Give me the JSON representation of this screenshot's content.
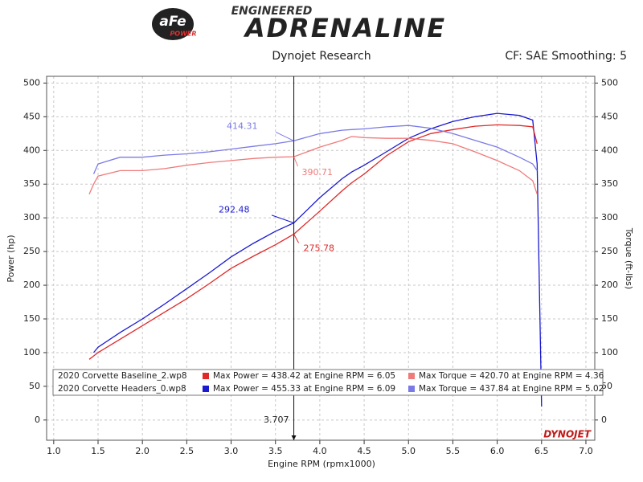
{
  "chart_data": {
    "type": "line",
    "logo": "aFe",
    "logo_sub": "POWER",
    "supertitle": "ENGINEERED",
    "title": "ADRENALINE",
    "subtitle": "Dynojet Research",
    "corner_note": "CF: SAE Smoothing: 5",
    "brand": "DYNOJET",
    "x_label": "Engine RPM (rpmx1000)",
    "y_label": "Power (hp)",
    "y2_label": "Torque (ft-lbs)",
    "xlim": [
      0.92,
      7.1
    ],
    "ylim": [
      -30,
      510
    ],
    "y2lim": [
      -30,
      510
    ],
    "xticks": [
      {
        "value": 1,
        "label": "1.0"
      },
      1.5,
      {
        "value": 2,
        "label": "2.0"
      },
      2.5,
      {
        "value": 3,
        "label": "3.0"
      },
      3.5,
      {
        "value": 4,
        "label": "4.0"
      },
      4.5,
      {
        "value": 5,
        "label": "5.0"
      },
      5.5,
      {
        "value": 6,
        "label": "6.0"
      },
      6.5,
      {
        "value": 7,
        "label": "7.0"
      }
    ],
    "yticks": [
      0,
      50,
      100,
      150,
      200,
      250,
      300,
      350,
      400,
      450,
      500
    ],
    "y2ticks": [
      0,
      50,
      100,
      150,
      200,
      250,
      300,
      350,
      400,
      450,
      500
    ],
    "grid": true,
    "cursor_x": 3.707,
    "x": [
      1.4,
      1.45,
      1.5,
      1.75,
      2.0,
      2.25,
      2.5,
      2.75,
      3.0,
      3.25,
      3.5,
      3.707,
      4.0,
      4.25,
      4.36,
      4.5,
      4.75,
      5.0,
      5.25,
      5.5,
      5.75,
      6.0,
      6.25,
      6.4,
      6.45,
      6.5
    ],
    "series": [
      {
        "color": "#1a1ad0",
        "values": [
          null,
          100,
          108,
          130,
          150,
          172,
          195,
          218,
          242,
          262,
          280,
          292.48,
          330,
          358,
          368,
          378,
          398,
          418,
          432,
          443,
          450,
          455,
          452,
          445,
          380,
          20
        ]
      },
      {
        "color": "#e02828",
        "values": [
          90,
          95,
          100,
          120,
          140,
          160,
          180,
          202,
          225,
          243,
          260,
          275.78,
          310,
          340,
          352,
          365,
          392,
          413,
          425,
          431,
          436,
          438,
          437,
          435,
          410,
          null
        ]
      },
      {
        "color": "#7a7ae6",
        "axis": "y2",
        "values": [
          null,
          365,
          380,
          390,
          390,
          393,
          395,
          398,
          402,
          406,
          410,
          414.31,
          425,
          430,
          431,
          432,
          435,
          437,
          433,
          425,
          415,
          405,
          390,
          380,
          370,
          null
        ]
      },
      {
        "color": "#f07a7a",
        "axis": "y2",
        "values": [
          335,
          350,
          362,
          370,
          370,
          373,
          378,
          382,
          385,
          388,
          390,
          390.71,
          405,
          415,
          420.7,
          419,
          418,
          418,
          415,
          410,
          398,
          385,
          370,
          355,
          335,
          null
        ]
      }
    ],
    "legend_rows": [
      {
        "file": "2020 Corvette Baseline_2.wp8",
        "power": "Max Power = 438.42 at Engine RPM = 6.05",
        "torque": "Max Torque = 420.70 at Engine RPM = 4.36"
      },
      {
        "file": "2020 Corvette Headers_0.wp8",
        "power": "Max Power = 455.33 at Engine RPM = 6.09",
        "torque": "Max Torque = 437.84 at Engine RPM = 5.02"
      }
    ]
  }
}
